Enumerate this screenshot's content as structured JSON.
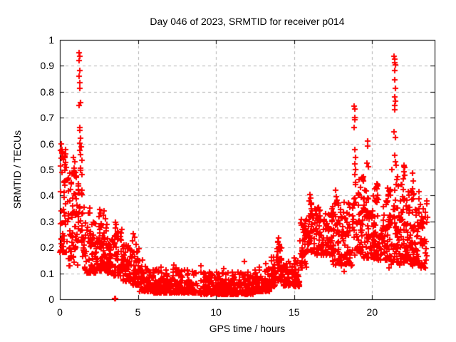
{
  "figure": {
    "title": "Day 046 of 2023, SRMTID for receiver p014",
    "xlabel": "GPS time / hours",
    "ylabel": "SRMTID / TECUs",
    "background_color": "#ffffff",
    "border_color": "#000000",
    "grid_color": "#b4b4b4",
    "marker_color": "#ff0000",
    "marker_shape": "plus"
  },
  "chart_data": {
    "type": "scatter",
    "title": "Day 046 of 2023, SRMTID for receiver p014",
    "xlabel": "GPS time / hours",
    "ylabel": "SRMTID / TECUs",
    "xlim": [
      0,
      24
    ],
    "ylim": [
      0,
      1
    ],
    "xticks": {
      "values": [
        0,
        5,
        10,
        15,
        20
      ],
      "labels": [
        "0",
        "5",
        "10",
        "15",
        "20"
      ]
    },
    "yticks": {
      "values": [
        0,
        0.1,
        0.2,
        0.3,
        0.4,
        0.5,
        0.6,
        0.7,
        0.8,
        0.9,
        1
      ],
      "labels": [
        "0",
        "0.1",
        "0.2",
        "0.3",
        "0.4",
        "0.5",
        "0.6",
        "0.7",
        "0.8",
        "0.9",
        "1"
      ]
    },
    "grid": "dashed, on all major ticks",
    "legend": "none",
    "seed": 7,
    "cluster_columns": [
      "x_start_h",
      "x_end_h",
      "n_points",
      "y_min_TECU",
      "y_max_TECU",
      "skew_toward_min"
    ],
    "clusters": [
      [
        0.0,
        0.5,
        55,
        0.18,
        0.58,
        2.0
      ],
      [
        0.5,
        1.15,
        55,
        0.13,
        0.5,
        1.9
      ],
      [
        1.15,
        1.45,
        30,
        0.22,
        0.55,
        1.5
      ],
      [
        1.45,
        2.3,
        70,
        0.1,
        0.36,
        1.9
      ],
      [
        2.3,
        3.0,
        70,
        0.11,
        0.3,
        1.8
      ],
      [
        3.0,
        3.45,
        45,
        0.1,
        0.24,
        1.8
      ],
      [
        3.45,
        4.0,
        55,
        0.09,
        0.27,
        1.9
      ],
      [
        4.0,
        4.6,
        50,
        0.07,
        0.21,
        1.9
      ],
      [
        4.6,
        5.1,
        45,
        0.055,
        0.22,
        2.1
      ],
      [
        5.1,
        6.0,
        80,
        0.03,
        0.13,
        2.1
      ],
      [
        6.0,
        9.0,
        260,
        0.025,
        0.115,
        2.2
      ],
      [
        9.0,
        12.5,
        300,
        0.02,
        0.105,
        2.2
      ],
      [
        12.5,
        13.5,
        90,
        0.03,
        0.125,
        2.1
      ],
      [
        13.5,
        13.85,
        35,
        0.05,
        0.165,
        1.6
      ],
      [
        13.85,
        14.25,
        40,
        0.07,
        0.225,
        1.4
      ],
      [
        14.25,
        14.7,
        40,
        0.05,
        0.155,
        1.7
      ],
      [
        14.7,
        15.35,
        50,
        0.05,
        0.16,
        1.9
      ],
      [
        15.35,
        15.8,
        45,
        0.12,
        0.32,
        1.5
      ],
      [
        15.8,
        16.3,
        50,
        0.18,
        0.385,
        1.5
      ],
      [
        16.3,
        17.4,
        95,
        0.17,
        0.355,
        1.5
      ],
      [
        17.4,
        18.1,
        70,
        0.13,
        0.385,
        1.5
      ],
      [
        18.1,
        18.75,
        55,
        0.13,
        0.375,
        1.5
      ],
      [
        18.75,
        19.3,
        45,
        0.17,
        0.475,
        1.4
      ],
      [
        19.3,
        20.1,
        70,
        0.16,
        0.465,
        1.5
      ],
      [
        20.1,
        21.2,
        110,
        0.15,
        0.445,
        1.5
      ],
      [
        21.2,
        21.75,
        55,
        0.13,
        0.52,
        1.5
      ],
      [
        21.75,
        22.4,
        70,
        0.14,
        0.45,
        1.5
      ],
      [
        22.4,
        23.0,
        60,
        0.13,
        0.42,
        1.5
      ],
      [
        23.0,
        23.55,
        45,
        0.12,
        0.4,
        1.5
      ]
    ],
    "outliers": [
      [
        1.22,
        0.95
      ],
      [
        1.26,
        0.936
      ],
      [
        1.24,
        0.92
      ],
      [
        1.28,
        0.883
      ],
      [
        1.25,
        0.86
      ],
      [
        1.3,
        0.835
      ],
      [
        1.27,
        0.812
      ],
      [
        1.31,
        0.757
      ],
      [
        1.24,
        0.746
      ],
      [
        1.29,
        0.663
      ],
      [
        1.27,
        0.65
      ],
      [
        1.33,
        0.622
      ],
      [
        1.3,
        0.601
      ],
      [
        1.35,
        0.589
      ],
      [
        1.26,
        0.573
      ],
      [
        1.32,
        0.558
      ],
      [
        0.1,
        0.6
      ],
      [
        0.13,
        0.577
      ],
      [
        0.16,
        0.561
      ],
      [
        0.08,
        0.545
      ],
      [
        0.3,
        0.548
      ],
      [
        0.36,
        0.527
      ],
      [
        0.42,
        0.509
      ],
      [
        0.85,
        0.547
      ],
      [
        0.95,
        0.529
      ],
      [
        0.9,
        0.506
      ],
      [
        1.02,
        0.488
      ],
      [
        0.55,
        0.468
      ],
      [
        0.75,
        0.451
      ],
      [
        1.05,
        0.47
      ],
      [
        1.9,
        0.352
      ],
      [
        2.55,
        0.345
      ],
      [
        2.6,
        0.332
      ],
      [
        2.52,
        0.318
      ],
      [
        2.85,
        0.34
      ],
      [
        2.8,
        0.325
      ],
      [
        2.9,
        0.31
      ],
      [
        3.55,
        0.298
      ],
      [
        3.62,
        0.288
      ],
      [
        3.58,
        0.275
      ],
      [
        3.7,
        0.262
      ],
      [
        3.5,
        0.004
      ],
      [
        3.56,
        0.004
      ],
      [
        4.7,
        0.252
      ],
      [
        4.78,
        0.238
      ],
      [
        4.65,
        0.225
      ],
      [
        5.3,
        0.152
      ],
      [
        6.5,
        0.124
      ],
      [
        7.3,
        0.132
      ],
      [
        7.45,
        0.121
      ],
      [
        9.05,
        0.128
      ],
      [
        10.5,
        0.118
      ],
      [
        11.8,
        0.146
      ],
      [
        13.2,
        0.136
      ],
      [
        14.0,
        0.235
      ],
      [
        13.95,
        0.223
      ],
      [
        14.05,
        0.212
      ],
      [
        14.02,
        0.2
      ],
      [
        16.0,
        0.405
      ],
      [
        16.04,
        0.391
      ],
      [
        15.96,
        0.379
      ],
      [
        16.1,
        0.371
      ],
      [
        17.65,
        0.421
      ],
      [
        17.7,
        0.396
      ],
      [
        17.73,
        0.383
      ],
      [
        18.85,
        0.745
      ],
      [
        18.87,
        0.733
      ],
      [
        18.9,
        0.701
      ],
      [
        18.88,
        0.692
      ],
      [
        18.86,
        0.661
      ],
      [
        18.9,
        0.576
      ],
      [
        18.92,
        0.546
      ],
      [
        18.88,
        0.521
      ],
      [
        18.95,
        0.501
      ],
      [
        18.91,
        0.481
      ],
      [
        19.35,
        0.471
      ],
      [
        19.38,
        0.468
      ],
      [
        19.41,
        0.465
      ],
      [
        19.43,
        0.473
      ],
      [
        19.37,
        0.461
      ],
      [
        19.46,
        0.456
      ],
      [
        19.7,
        0.611
      ],
      [
        19.72,
        0.591
      ],
      [
        19.68,
        0.526
      ],
      [
        19.75,
        0.511
      ],
      [
        20.3,
        0.446
      ],
      [
        20.33,
        0.441
      ],
      [
        20.36,
        0.438
      ],
      [
        20.28,
        0.432
      ],
      [
        21.42,
        0.936
      ],
      [
        21.46,
        0.925
      ],
      [
        21.44,
        0.912
      ],
      [
        21.48,
        0.904
      ],
      [
        21.45,
        0.881
      ],
      [
        21.43,
        0.846
      ],
      [
        21.47,
        0.813
      ],
      [
        21.45,
        0.779
      ],
      [
        21.5,
        0.764
      ],
      [
        21.44,
        0.746
      ],
      [
        21.46,
        0.731
      ],
      [
        21.42,
        0.646
      ],
      [
        21.48,
        0.623
      ],
      [
        21.44,
        0.554
      ],
      [
        21.5,
        0.531
      ],
      [
        22.02,
        0.516
      ],
      [
        22.05,
        0.512
      ],
      [
        22.08,
        0.508
      ],
      [
        22.04,
        0.493
      ],
      [
        22.1,
        0.479
      ],
      [
        22.0,
        0.463
      ],
      [
        22.58,
        0.487
      ],
      [
        22.62,
        0.456
      ],
      [
        22.6,
        0.426
      ],
      [
        22.65,
        0.403
      ],
      [
        22.63,
        0.386
      ],
      [
        21.1,
        0.122
      ],
      [
        18.2,
        0.106
      ],
      [
        15.05,
        0.076
      ],
      [
        15.12,
        0.062
      ]
    ]
  }
}
